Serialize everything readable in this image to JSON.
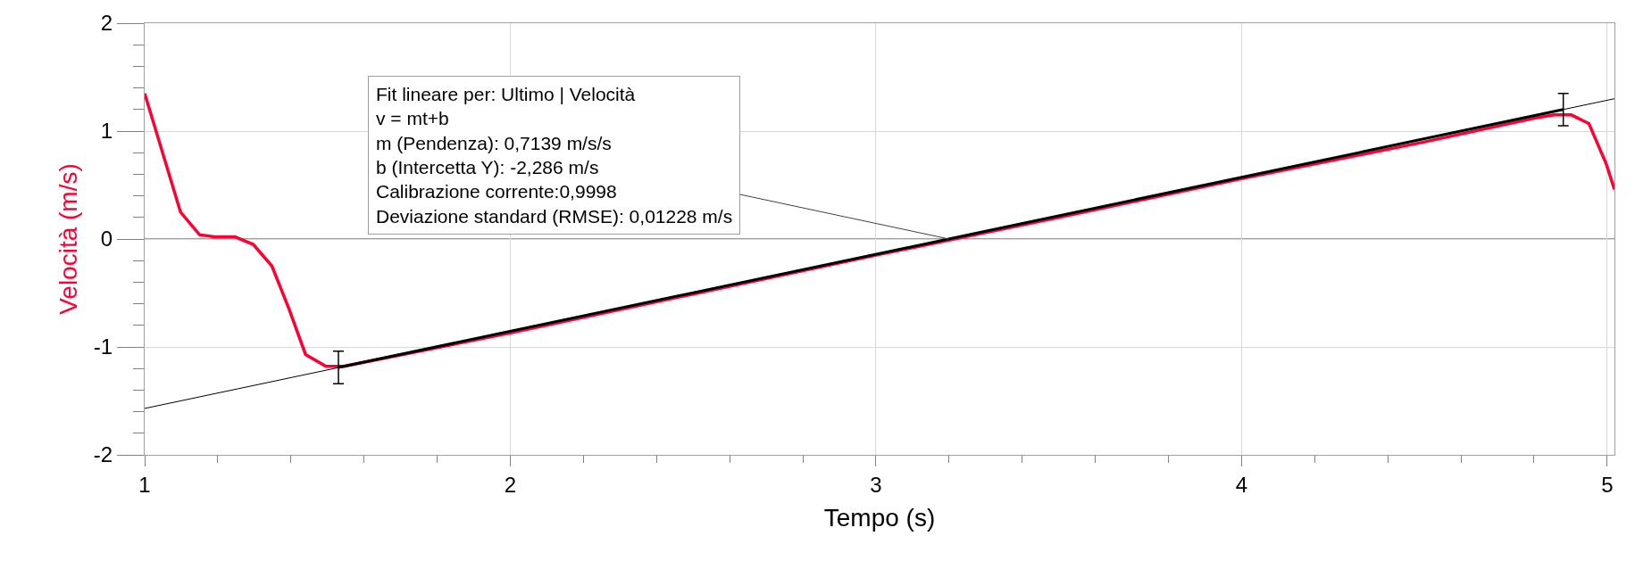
{
  "chart_data": {
    "type": "line",
    "xlabel": "Tempo (s)",
    "ylabel": "Velocità (m/s)",
    "series": [
      {
        "color": "#ff0033",
        "x": [
          1,
          1.098,
          1.15,
          1.19,
          1.247,
          1.297,
          1.348,
          1.395,
          1.44,
          1.496,
          1.545,
          2,
          2.5,
          3,
          3.5,
          4,
          4.5,
          4.8,
          4.855,
          4.902,
          4.95,
          4.997,
          5.02
        ],
        "values": [
          1.35,
          0.25,
          0.04,
          0.02,
          0.02,
          -0.05,
          -0.25,
          -0.65,
          -1.07,
          -1.18,
          -1.18,
          -0.87,
          -0.51,
          -0.15,
          0.2,
          0.56,
          0.9,
          1.12,
          1.15,
          1.15,
          1.07,
          0.7,
          0.46
        ]
      },
      {
        "color": "#000000",
        "x": [
          1,
          5.02
        ],
        "values": [
          -1.57,
          1.3
        ]
      },
      {
        "color": "#000000",
        "x": [
          1.53,
          4.88
        ],
        "values": [
          -1.19,
          1.2
        ],
        "errors": [
          0.15,
          0.15
        ]
      }
    ],
    "annotations": [
      {
        "text": "Fit lineare per: Ultimo | Velocità\nv = mt+b\nm (Pendenza): 0,7139 m/s/s\nb (Intercetta Y): -2,286 m/s\nCalibrazione corrente:0,9998\nDeviazione standard (RMSE): 0,01228 m/s",
        "x": 3.2,
        "y": 0
      }
    ],
    "ref_lines": [
      {
        "axis": "y",
        "value": 0,
        "color": "#808080"
      }
    ],
    "xlim": [
      1,
      5.02
    ],
    "ylim": [
      -2,
      2
    ],
    "xticks": [
      1,
      {
        "value": 1.2,
        "label": null
      },
      {
        "value": 1.4,
        "label": null
      },
      {
        "value": 1.6,
        "label": null
      },
      {
        "value": 1.8,
        "label": null
      },
      2,
      {
        "value": 2.2,
        "label": null
      },
      {
        "value": 2.4,
        "label": null
      },
      {
        "value": 2.6,
        "label": null
      },
      {
        "value": 2.8,
        "label": null
      },
      3,
      {
        "value": 3.2,
        "label": null
      },
      {
        "value": 3.4,
        "label": null
      },
      {
        "value": 3.6,
        "label": null
      },
      {
        "value": 3.8,
        "label": null
      },
      4,
      {
        "value": 4.2,
        "label": null
      },
      {
        "value": 4.4,
        "label": null
      },
      {
        "value": 4.6,
        "label": null
      },
      {
        "value": 4.8,
        "label": null
      },
      5
    ],
    "yticks": [
      -2,
      {
        "value": -1.8,
        "label": null
      },
      {
        "value": -1.6,
        "label": null
      },
      {
        "value": -1.4,
        "label": null
      },
      {
        "value": -1.2,
        "label": null
      },
      -1,
      {
        "value": -0.8,
        "label": null
      },
      {
        "value": -0.6,
        "label": null
      },
      {
        "value": -0.4,
        "label": null
      },
      {
        "value": -0.2,
        "label": null
      },
      0,
      {
        "value": 0.2,
        "label": null
      },
      {
        "value": 0.4,
        "label": null
      },
      {
        "value": 0.6,
        "label": null
      },
      {
        "value": 0.8,
        "label": null
      },
      1,
      {
        "value": 1.2,
        "label": null
      },
      {
        "value": 1.4,
        "label": null
      },
      {
        "value": 1.6,
        "label": null
      },
      {
        "value": 1.8,
        "label": null
      },
      2
    ],
    "grid": true,
    "marker": "none",
    "line_style": "solid"
  }
}
